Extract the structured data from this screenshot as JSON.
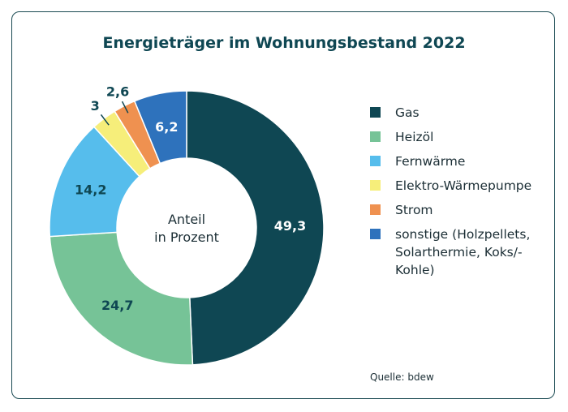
{
  "chart_data": {
    "type": "pie",
    "title": "Energieträger im Wohnungsbestand 2022",
    "center_label": [
      "Anteil",
      "in Prozent"
    ],
    "slices": [
      {
        "name": "Gas",
        "value": 49.3,
        "label": "49,3",
        "color": "#0f4753",
        "label_color": "#ffffff"
      },
      {
        "name": "Heizöl",
        "value": 24.7,
        "label": "24,7",
        "color": "#76c397",
        "label_color": "#0f4753"
      },
      {
        "name": "Fernwärme",
        "value": 14.2,
        "label": "14,2",
        "color": "#56bdec",
        "label_color": "#0f4753"
      },
      {
        "name": "Elektro-Wärmepumpe",
        "value": 3,
        "label": "3",
        "color": "#f6ee7a",
        "label_color": "#0f4753"
      },
      {
        "name": "Strom",
        "value": 2.6,
        "label": "2,6",
        "color": "#ef9150",
        "label_color": "#0f4753"
      },
      {
        "name": "sonstige (Holzpellets, Solarthermie, Koks/-Kohle)",
        "value": 6.2,
        "label": "6,2",
        "color": "#2e72bc",
        "label_color": "#ffffff"
      }
    ],
    "legend_placement": "right"
  },
  "legend": [
    {
      "lines": [
        "Gas"
      ],
      "color": "#0f4753"
    },
    {
      "lines": [
        "Heizöl"
      ],
      "color": "#76c397"
    },
    {
      "lines": [
        "Fernwärme"
      ],
      "color": "#56bdec"
    },
    {
      "lines": [
        "Elektro-Wärmepumpe"
      ],
      "color": "#f6ee7a"
    },
    {
      "lines": [
        "Strom"
      ],
      "color": "#ef9150"
    },
    {
      "lines": [
        "sonstige (Holzpellets,",
        "Solarthermie, Koks/-",
        "Kohle)"
      ],
      "color": "#2e72bc"
    }
  ],
  "source": "Quelle: bdew"
}
